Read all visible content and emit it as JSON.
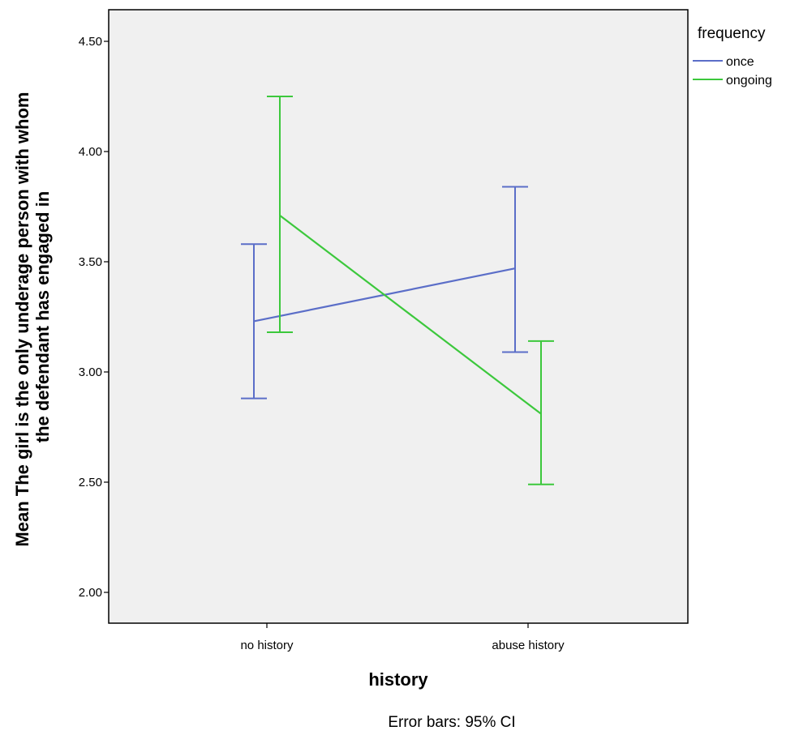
{
  "chart_data": {
    "type": "line",
    "xlabel": "history",
    "ylabel_lines": [
      "Mean The girl is the only underage person with whom",
      "the defendant has engaged in"
    ],
    "categories": [
      "no history",
      "abuse history"
    ],
    "ylim": [
      1.85,
      4.65
    ],
    "yticks": [
      2.0,
      2.5,
      3.0,
      3.5,
      4.0,
      4.5
    ],
    "ytick_labels": [
      "2.00",
      "2.50",
      "3.00",
      "3.50",
      "4.00",
      "4.50"
    ],
    "legend_title": "frequency",
    "legend_position": "right",
    "grid": false,
    "footnote": "Error bars: 95% CI",
    "series": [
      {
        "name": "once",
        "color": "#5b6ec8",
        "values": [
          3.23,
          3.47
        ],
        "ci_low": [
          2.88,
          3.09
        ],
        "ci_high": [
          3.58,
          3.84
        ]
      },
      {
        "name": "ongoing",
        "color": "#3cc83c",
        "values": [
          3.71,
          2.81
        ],
        "ci_low": [
          3.18,
          2.49
        ],
        "ci_high": [
          4.25,
          3.14
        ]
      }
    ]
  }
}
